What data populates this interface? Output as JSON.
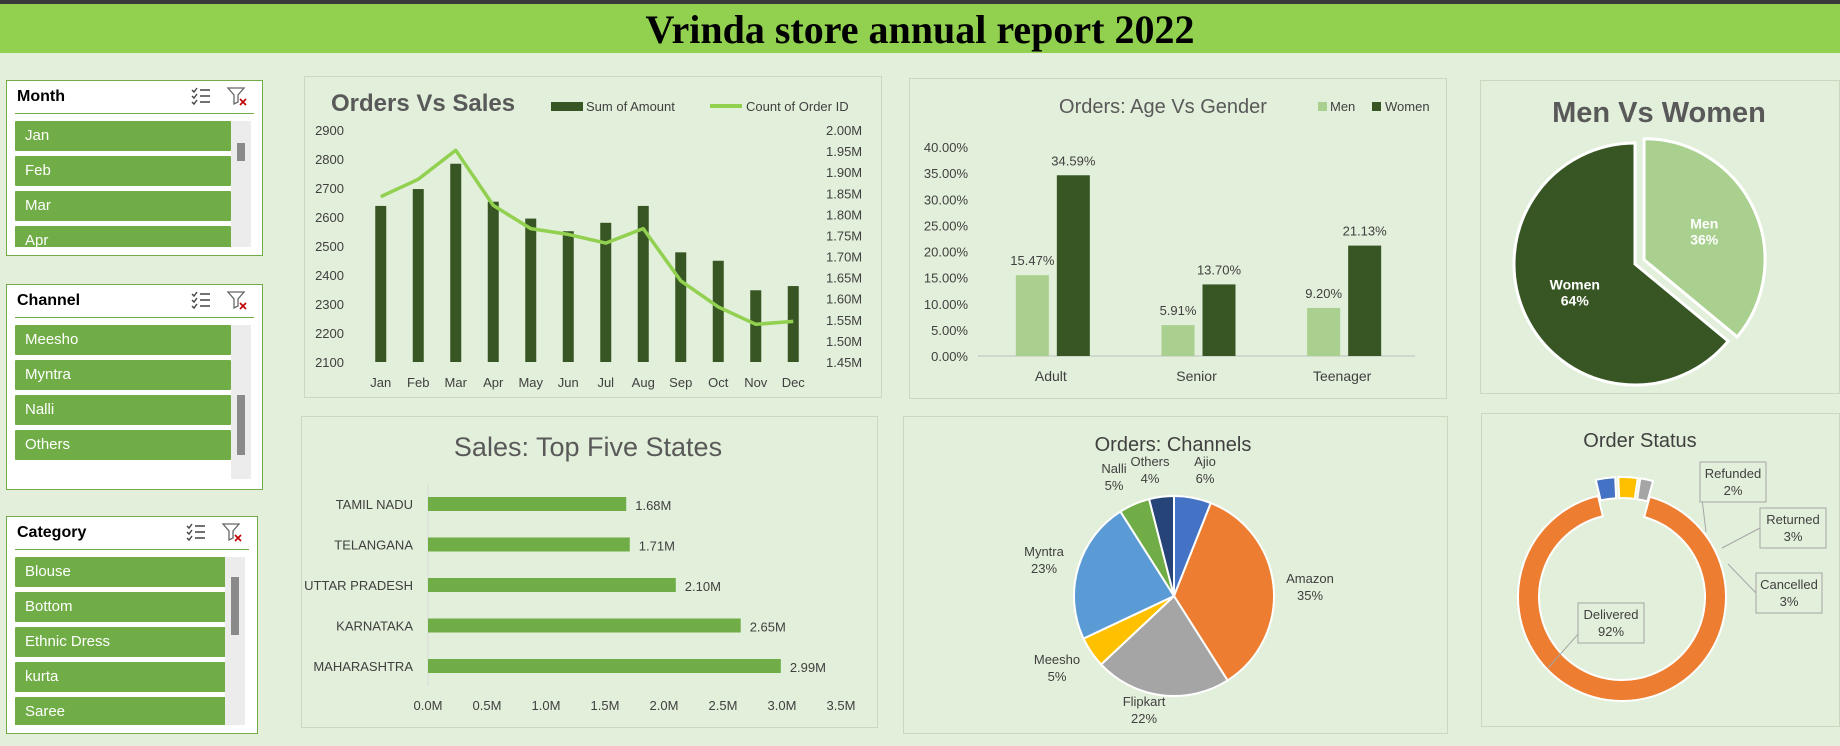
{
  "title": "Vrinda store annual report 2022",
  "colors": {
    "title_bar": "#92d050",
    "slicer_item": "#70ad47",
    "dark_green": "#375623",
    "light_green": "#a9d08e",
    "line_green": "#92d050",
    "bar_green": "#70ad47",
    "orange": "#ed7d31",
    "gray": "#a5a5a5",
    "yellow": "#ffc000",
    "blue": "#4472c4",
    "sky": "#5b9bd5",
    "navy": "#264478"
  },
  "slicers": {
    "month": {
      "title": "Month",
      "items": [
        "Jan",
        "Feb",
        "Mar",
        "Apr"
      ],
      "icons": [
        "multi-select-icon",
        "clear-filter-icon"
      ]
    },
    "channel": {
      "title": "Channel",
      "items": [
        "Meesho",
        "Myntra",
        "Nalli",
        "Others"
      ],
      "icons": [
        "multi-select-icon",
        "clear-filter-icon"
      ]
    },
    "category": {
      "title": "Category",
      "items": [
        "Blouse",
        "Bottom",
        "Ethnic Dress",
        "kurta",
        "Saree"
      ],
      "icons": [
        "multi-select-icon",
        "clear-filter-icon"
      ]
    }
  },
  "chart_data": [
    {
      "id": "orders_vs_sales",
      "type": "bar",
      "title": "Orders Vs Sales",
      "categories": [
        "Jan",
        "Feb",
        "Mar",
        "Apr",
        "May",
        "Jun",
        "Jul",
        "Aug",
        "Sep",
        "Oct",
        "Nov",
        "Dec"
      ],
      "series": [
        {
          "name": "Sum of Amount",
          "type": "bar",
          "axis": "right",
          "values": [
            1.82,
            1.86,
            1.92,
            1.83,
            1.79,
            1.76,
            1.78,
            1.82,
            1.71,
            1.69,
            1.62,
            1.63
          ]
        },
        {
          "name": "Count of Order ID",
          "type": "line",
          "axis": "left",
          "values": [
            2670,
            2730,
            2830,
            2640,
            2560,
            2540,
            2510,
            2560,
            2380,
            2290,
            2230,
            2240
          ]
        }
      ],
      "y_left": {
        "ticks": [
          "2100",
          "2200",
          "2300",
          "2400",
          "2500",
          "2600",
          "2700",
          "2800",
          "2900"
        ],
        "min": 2100,
        "max": 2900
      },
      "y_right": {
        "ticks": [
          "1.45M",
          "1.50M",
          "1.55M",
          "1.60M",
          "1.65M",
          "1.70M",
          "1.75M",
          "1.80M",
          "1.85M",
          "1.90M",
          "1.95M",
          "2.00M"
        ],
        "min": 1.45,
        "max": 2.0
      },
      "legend": "top"
    },
    {
      "id": "age_vs_gender",
      "type": "bar",
      "title": "Orders: Age Vs Gender",
      "categories": [
        "Adult",
        "Senior",
        "Teenager"
      ],
      "series": [
        {
          "name": "Men",
          "values": [
            15.47,
            5.91,
            9.2
          ],
          "labels": [
            "15.47%",
            "5.91%",
            "9.20%"
          ]
        },
        {
          "name": "Women",
          "values": [
            34.59,
            13.7,
            21.13
          ],
          "labels": [
            "34.59%",
            "13.70%",
            "21.13%"
          ]
        }
      ],
      "y_ticks": [
        "0.00%",
        "5.00%",
        "10.00%",
        "15.00%",
        "20.00%",
        "25.00%",
        "30.00%",
        "35.00%",
        "40.00%"
      ],
      "ylim": [
        0,
        40
      ],
      "legend": "top-right"
    },
    {
      "id": "men_vs_women",
      "type": "pie",
      "title": "Men Vs Women",
      "slices": [
        {
          "name": "Men",
          "value": 36,
          "label": "36%"
        },
        {
          "name": "Women",
          "value": 64,
          "label": "64%"
        }
      ]
    },
    {
      "id": "top_five_states",
      "type": "bar",
      "orientation": "horizontal",
      "title": "Sales: Top Five States",
      "categories": [
        "TAMIL NADU",
        "TELANGANA",
        "UTTAR PRADESH",
        "KARNATAKA",
        "MAHARASHTRA"
      ],
      "values": [
        1.68,
        1.71,
        2.1,
        2.65,
        2.99
      ],
      "labels": [
        "1.68M",
        "1.71M",
        "2.10M",
        "2.65M",
        "2.99M"
      ],
      "x_ticks": [
        "0.0M",
        "0.5M",
        "1.0M",
        "1.5M",
        "2.0M",
        "2.5M",
        "3.0M",
        "3.5M"
      ],
      "xlim": [
        0,
        3.5
      ]
    },
    {
      "id": "channels",
      "type": "pie",
      "title": "Orders: Channels",
      "slices": [
        {
          "name": "Ajio",
          "value": 6,
          "label": "6%"
        },
        {
          "name": "Amazon",
          "value": 35,
          "label": "35%"
        },
        {
          "name": "Flipkart",
          "value": 22,
          "label": "22%"
        },
        {
          "name": "Meesho",
          "value": 5,
          "label": "5%"
        },
        {
          "name": "Myntra",
          "value": 23,
          "label": "23%"
        },
        {
          "name": "Nalli",
          "value": 5,
          "label": "5%"
        },
        {
          "name": "Others",
          "value": 4,
          "label": "4%"
        }
      ]
    },
    {
      "id": "order_status",
      "type": "pie",
      "subtype": "doughnut",
      "title": "Order Status",
      "slices": [
        {
          "name": "Delivered",
          "value": 92,
          "label": "92%"
        },
        {
          "name": "Cancelled",
          "value": 3,
          "label": "3%"
        },
        {
          "name": "Returned",
          "value": 3,
          "label": "3%"
        },
        {
          "name": "Refunded",
          "value": 2,
          "label": "2%"
        }
      ]
    }
  ]
}
